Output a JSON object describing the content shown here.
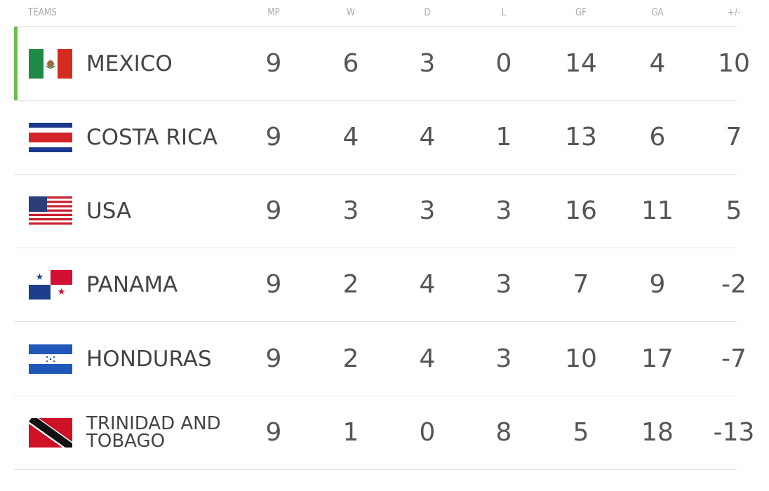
{
  "table": {
    "headers": [
      "TEAMS",
      "MP",
      "W",
      "D",
      "L",
      "GF",
      "GA",
      "+/-"
    ],
    "rows": [
      [
        "MEXICO",
        9,
        6,
        3,
        0,
        14,
        4,
        10
      ],
      [
        "COSTA RICA",
        9,
        4,
        4,
        1,
        13,
        6,
        7
      ],
      [
        "USA",
        9,
        3,
        3,
        3,
        16,
        11,
        5
      ],
      [
        "PANAMA",
        9,
        2,
        4,
        3,
        7,
        9,
        -2
      ],
      [
        "HONDURAS",
        9,
        2,
        4,
        3,
        10,
        17,
        -7
      ],
      [
        "TRINIDAD AND TOBAGO",
        9,
        1,
        0,
        8,
        5,
        18,
        -13
      ]
    ]
  }
}
